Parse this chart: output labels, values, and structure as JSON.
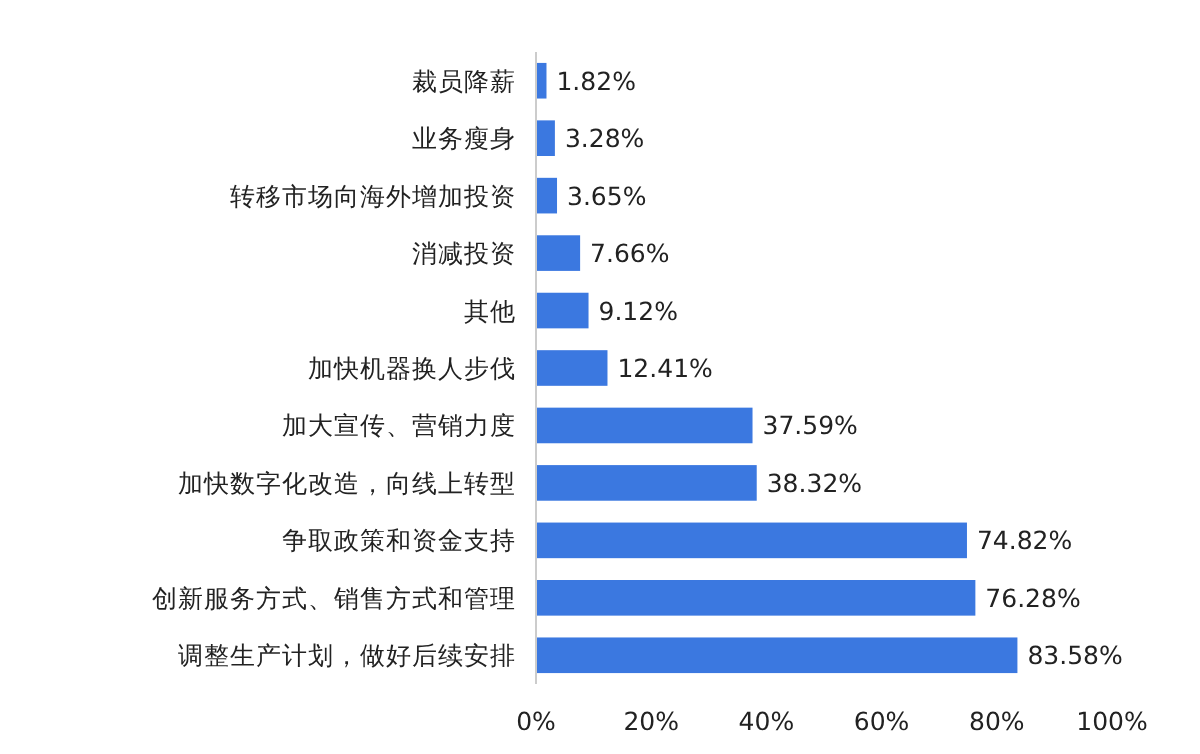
{
  "chart_data": {
    "type": "bar",
    "orientation": "horizontal",
    "categories": [
      "裁员降薪",
      "业务瘦身",
      "转移市场向海外增加投资",
      "消减投资",
      "其他",
      "加快机器换人步伐",
      "加大宣传、营销力度",
      "加快数字化改造，向线上转型",
      "争取政策和资金支持",
      "创新服务方式、销售方式和管理",
      "调整生产计划，做好后续安排"
    ],
    "values": [
      1.82,
      3.28,
      3.65,
      7.66,
      9.12,
      12.41,
      37.59,
      38.32,
      74.82,
      76.28,
      83.58
    ],
    "value_labels": [
      "1.82%",
      "3.28%",
      "3.65%",
      "7.66%",
      "9.12%",
      "12.41%",
      "37.59%",
      "38.32%",
      "74.82%",
      "76.28%",
      "83.58%"
    ],
    "color": "#3b78e0",
    "xlim": [
      0,
      100
    ],
    "xticks": [
      {
        "value": 0,
        "label": "0%"
      },
      {
        "value": 20,
        "label": "20%"
      },
      {
        "value": 40,
        "label": "40%"
      },
      {
        "value": 60,
        "label": "60%"
      },
      {
        "value": 80,
        "label": "80%"
      },
      {
        "value": 100,
        "label": "100%"
      }
    ]
  }
}
